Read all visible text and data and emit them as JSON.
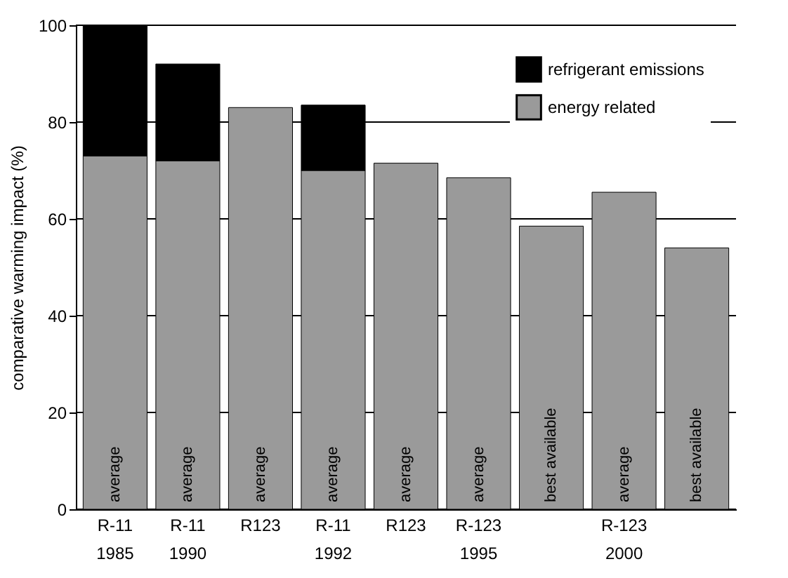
{
  "chart_data": {
    "type": "bar",
    "stacked": true,
    "ylabel": "comparative warming impact (%)",
    "categories": [
      "R-11\n1985",
      "R-11\n1990",
      "R123",
      "R-11\n1992",
      "R123",
      "R-123\n1995",
      null,
      "R-123\n2000",
      null
    ],
    "series": [
      {
        "name": "energy related",
        "color": "#9a9a9a",
        "values": [
          73,
          72,
          83,
          70,
          71.5,
          68.5,
          58.5,
          65.5,
          54
        ]
      },
      {
        "name": "refrigerant emissions",
        "color": "#000000",
        "values": [
          27,
          20,
          null,
          13.5,
          null,
          null,
          null,
          null,
          null
        ]
      }
    ],
    "annotations": [
      "average",
      "average",
      "average",
      "average",
      "average",
      "average",
      "best available",
      "average",
      "best available"
    ],
    "ylim": [
      0,
      100
    ],
    "yticks": [
      0,
      20,
      40,
      60,
      80,
      100
    ],
    "grid": "y",
    "legend": "top right"
  }
}
